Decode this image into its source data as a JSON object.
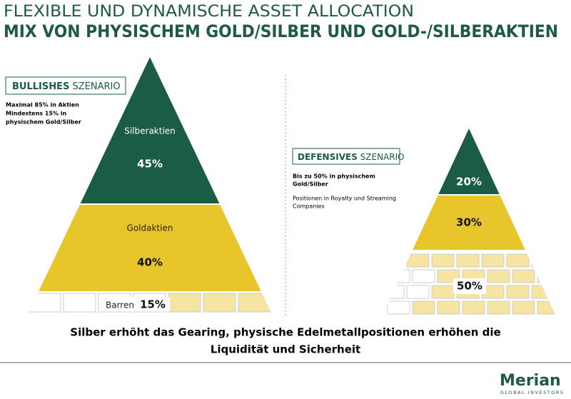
{
  "header": {
    "title": "FLEXIBLE UND DYNAMISCHE ASSET ALLOCATION",
    "subtitle": "MIX VON PHYSISCHEM GOLD/SILBER UND GOLD-/SILBERAKTIEN"
  },
  "bullish": {
    "label_bold": "BULLISHES",
    "label": "SZENARIO",
    "notes": [
      "Maximal 85% in Aktien",
      "Mindestens 15% in",
      "physischem Gold/Silber"
    ],
    "layers": [
      {
        "label": "Silberaktien",
        "value": "45%"
      },
      {
        "label": "Goldaktien",
        "value": "40%"
      },
      {
        "label": "Barren",
        "value": "15%"
      }
    ]
  },
  "defensive": {
    "label_bold": "DEFENSIVES",
    "label": "SZENARIO",
    "notes_bold": [
      "Bis zu 50% in physischem",
      "Gold/Silber"
    ],
    "notes": [
      "Positionen in Royalty und Streaming",
      "Companies"
    ],
    "layers": [
      {
        "value": "20%"
      },
      {
        "value": "30%"
      },
      {
        "value": "50%"
      }
    ]
  },
  "footer": {
    "text": [
      "Silber erhöht das Gearing, physische Edelmetallpositionen erhöhen die",
      "Liquidität und Sicherheit"
    ],
    "logo": "Merian",
    "logo_sub": "GLOBAL INVESTORS"
  }
}
